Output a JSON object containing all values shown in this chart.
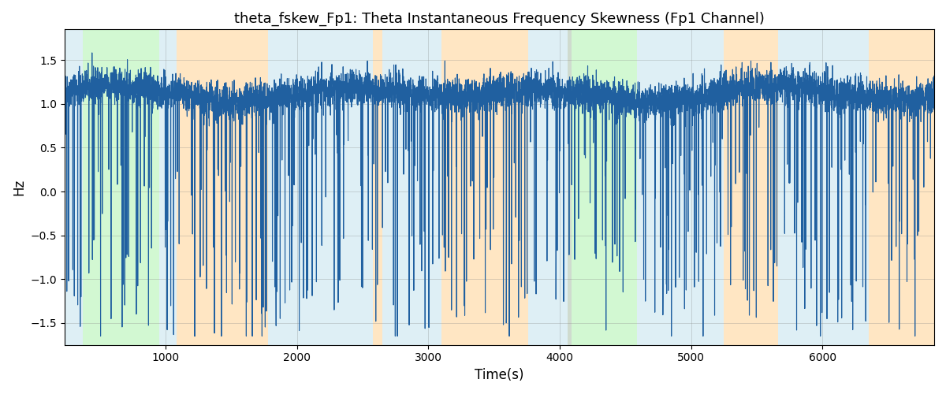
{
  "title": "theta_fskew_Fp1: Theta Instantaneous Frequency Skewness (Fp1 Channel)",
  "xlabel": "Time(s)",
  "ylabel": "Hz",
  "xlim": [
    230,
    6850
  ],
  "ylim": [
    -1.75,
    1.85
  ],
  "line_color": "#2060a0",
  "line_width": 0.8,
  "bg_regions": [
    {
      "xstart": 230,
      "xend": 370,
      "color": "#add8e6",
      "alpha": 0.4
    },
    {
      "xstart": 370,
      "xend": 950,
      "color": "#90ee90",
      "alpha": 0.4
    },
    {
      "xstart": 950,
      "xend": 1080,
      "color": "#add8e6",
      "alpha": 0.4
    },
    {
      "xstart": 1080,
      "xend": 1780,
      "color": "#ffc87a",
      "alpha": 0.45
    },
    {
      "xstart": 1780,
      "xend": 2580,
      "color": "#add8e6",
      "alpha": 0.4
    },
    {
      "xstart": 2580,
      "xend": 2650,
      "color": "#ffc87a",
      "alpha": 0.45
    },
    {
      "xstart": 2650,
      "xend": 3100,
      "color": "#add8e6",
      "alpha": 0.4
    },
    {
      "xstart": 3100,
      "xend": 3760,
      "color": "#ffc87a",
      "alpha": 0.45
    },
    {
      "xstart": 3760,
      "xend": 4060,
      "color": "#add8e6",
      "alpha": 0.4
    },
    {
      "xstart": 4060,
      "xend": 4090,
      "color": "#a0b8a0",
      "alpha": 0.5
    },
    {
      "xstart": 4090,
      "xend": 4590,
      "color": "#90ee90",
      "alpha": 0.4
    },
    {
      "xstart": 4590,
      "xend": 4780,
      "color": "#add8e6",
      "alpha": 0.4
    },
    {
      "xstart": 4780,
      "xend": 5250,
      "color": "#add8e6",
      "alpha": 0.4
    },
    {
      "xstart": 5250,
      "xend": 5660,
      "color": "#ffc87a",
      "alpha": 0.45
    },
    {
      "xstart": 5660,
      "xend": 6100,
      "color": "#add8e6",
      "alpha": 0.4
    },
    {
      "xstart": 6100,
      "xend": 6350,
      "color": "#add8e6",
      "alpha": 0.4
    },
    {
      "xstart": 6350,
      "xend": 6850,
      "color": "#ffc87a",
      "alpha": 0.45
    }
  ],
  "yticks": [
    -1.5,
    -1.0,
    -0.5,
    0.0,
    0.5,
    1.0,
    1.5
  ],
  "xticks": [
    1000,
    2000,
    3000,
    4000,
    5000,
    6000
  ],
  "grid": true,
  "seed": 42,
  "n_points": 6620
}
